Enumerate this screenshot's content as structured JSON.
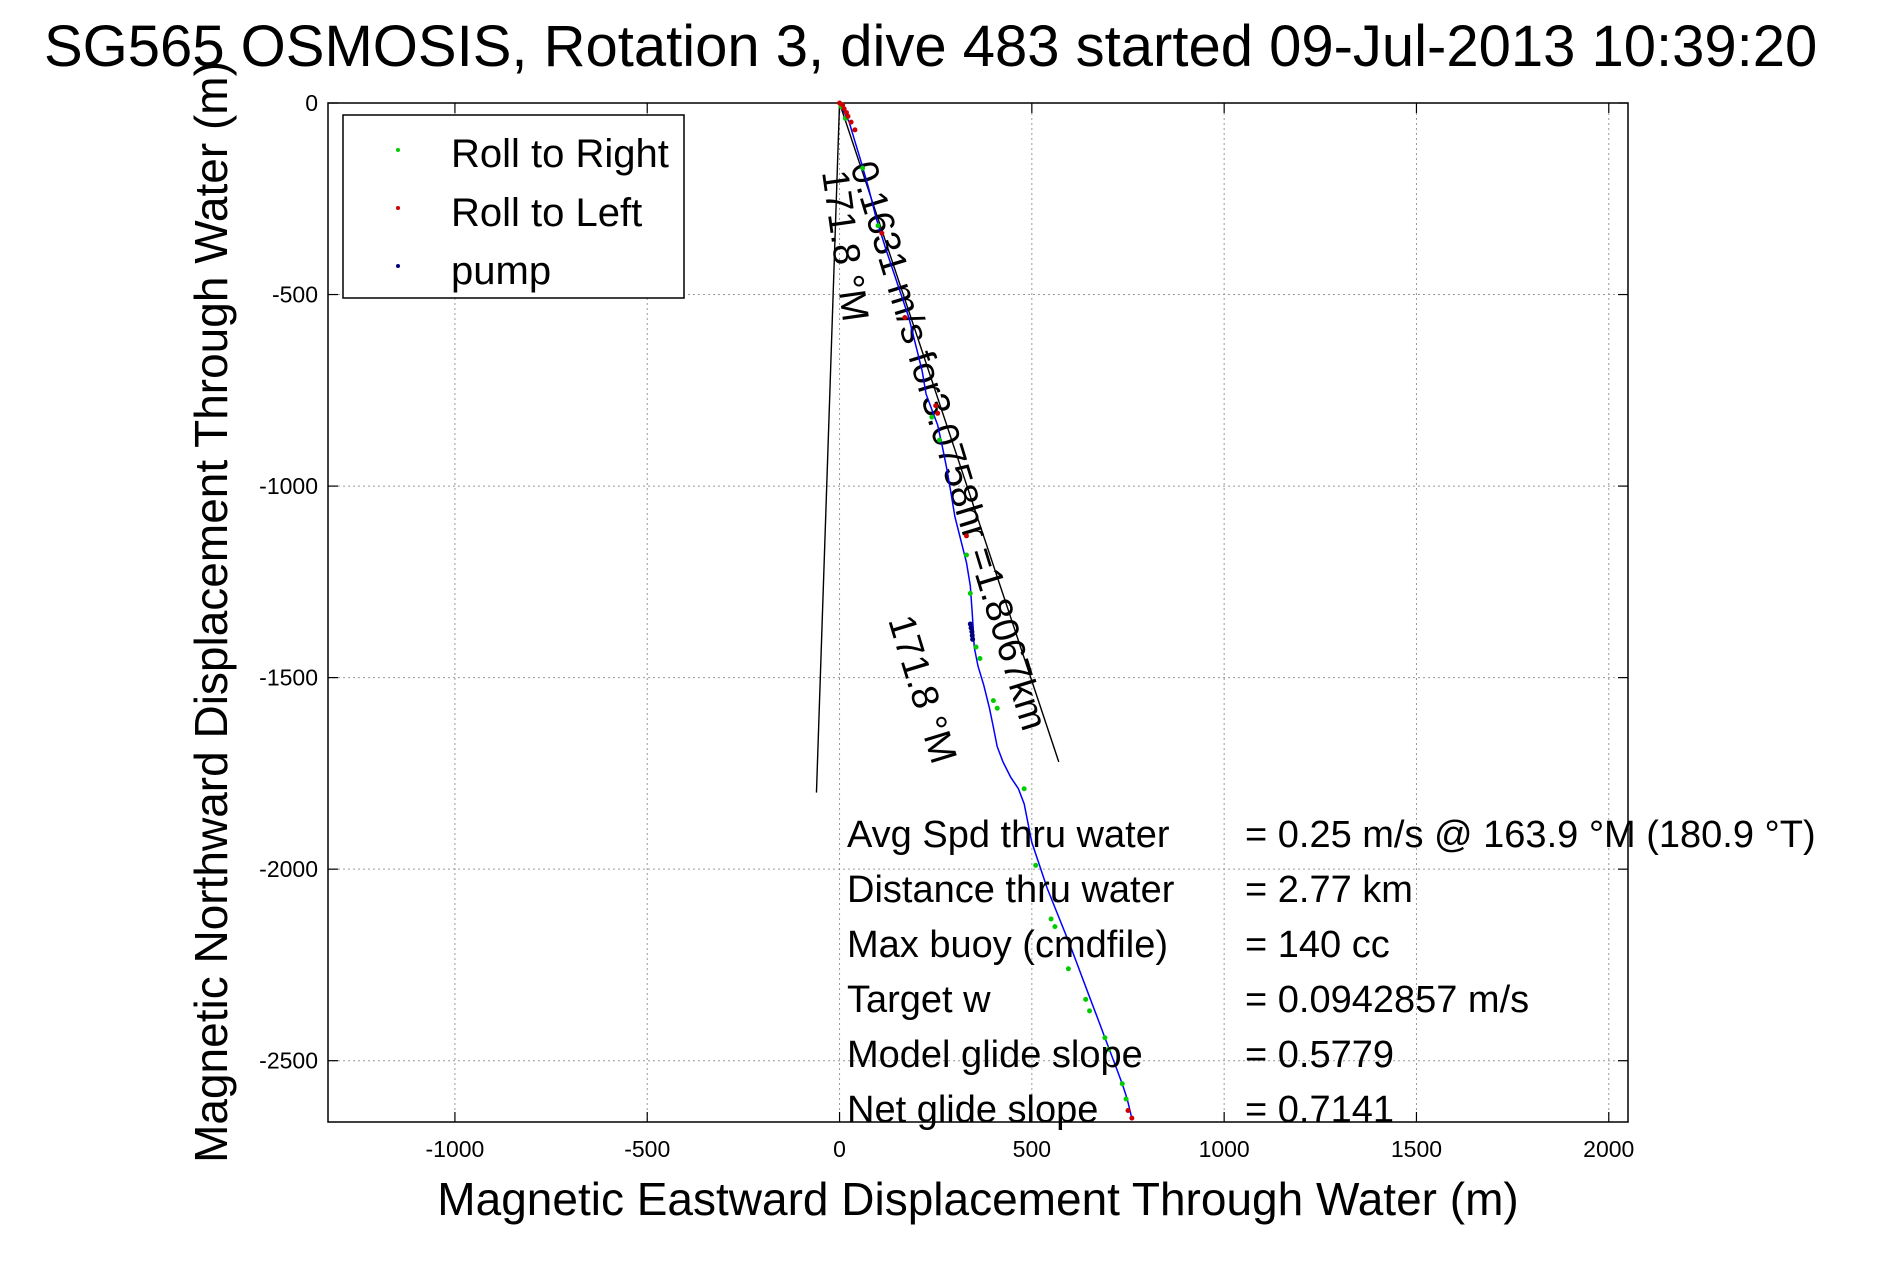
{
  "chart_data": {
    "type": "line",
    "title": "SG565 OSMOSIS, Rotation 3, dive 483 started 09-Jul-2013 10:39:20",
    "xlabel": "Magnetic Eastward Displacement Through Water (m)",
    "ylabel": "Magnetic Northward Displacement Through Water (m)",
    "xlim": [
      -1330,
      2050
    ],
    "ylim": [
      -2660,
      0
    ],
    "xticks": [
      -1000,
      -500,
      0,
      500,
      1000,
      1500,
      2000
    ],
    "xtick_labels": [
      "-1000",
      "-500",
      "0",
      "500",
      "1000",
      "1500",
      "2000"
    ],
    "yticks": [
      0,
      -500,
      -1000,
      -1500,
      -2000,
      -2500
    ],
    "ytick_labels": [
      "0",
      "-500",
      "-1000",
      "-1500",
      "-2000",
      "-2500"
    ],
    "grid": true,
    "legend_position": "top-left",
    "legend": [
      {
        "label": "Roll to Right",
        "color": "#00cc00"
      },
      {
        "label": "Roll to Left",
        "color": "#cc0000"
      },
      {
        "label": "pump",
        "color": "#000080"
      }
    ],
    "track": {
      "color": "#0000ff",
      "x": [
        0,
        10,
        25,
        40,
        55,
        75,
        95,
        120,
        150,
        180,
        200,
        215,
        225,
        240,
        255,
        268,
        280,
        290,
        300,
        315,
        330,
        340,
        345,
        348,
        350,
        360,
        375,
        390,
        400,
        410,
        425,
        445,
        465,
        480,
        490,
        500,
        520,
        540,
        560,
        580,
        600,
        615,
        630,
        645,
        660,
        675,
        690,
        705,
        720,
        735,
        748,
        760
      ],
      "y": [
        0,
        -20,
        -50,
        -100,
        -150,
        -220,
        -300,
        -380,
        -470,
        -560,
        -640,
        -700,
        -760,
        -800,
        -840,
        -900,
        -960,
        -1020,
        -1080,
        -1140,
        -1200,
        -1260,
        -1330,
        -1380,
        -1420,
        -1470,
        -1520,
        -1580,
        -1630,
        -1680,
        -1720,
        -1760,
        -1790,
        -1830,
        -1880,
        -1930,
        -1990,
        -2050,
        -2100,
        -2150,
        -2200,
        -2240,
        -2280,
        -2320,
        -2360,
        -2400,
        -2440,
        -2480,
        -2520,
        -2560,
        -2600,
        -2650
      ]
    },
    "roll_right_points": {
      "color": "#00cc00",
      "x": [
        5,
        15,
        60,
        100,
        240,
        260,
        330,
        340,
        355,
        365,
        400,
        410,
        480,
        510,
        550,
        560,
        595,
        640,
        650,
        690,
        700,
        735,
        745
      ],
      "y": [
        -10,
        -40,
        -170,
        -320,
        -820,
        -880,
        -1180,
        -1280,
        -1420,
        -1450,
        -1560,
        -1580,
        -1790,
        -1990,
        -2130,
        -2150,
        -2260,
        -2340,
        -2370,
        -2440,
        -2470,
        -2560,
        -2600
      ]
    },
    "roll_left_points": {
      "color": "#cc0000",
      "x": [
        0,
        8,
        12,
        18,
        22,
        30,
        40,
        110,
        170,
        250,
        255,
        330,
        750,
        760
      ],
      "y": [
        0,
        -5,
        -15,
        -25,
        -35,
        -50,
        -70,
        -340,
        -560,
        -790,
        -810,
        -1130,
        -2630,
        -2650
      ]
    },
    "pump_points": {
      "color": "#000080",
      "x": [
        340,
        342,
        344,
        345,
        346
      ],
      "y": [
        -1360,
        -1370,
        -1380,
        -1390,
        -1400
      ]
    },
    "reference_lines": [
      {
        "name": "line-171-left",
        "color": "#000000",
        "x": [
          0,
          -60
        ],
        "y": [
          0,
          -1800
        ]
      },
      {
        "name": "line-171-right",
        "color": "#000000",
        "x": [
          0,
          570
        ],
        "y": [
          0,
          -1720
        ]
      }
    ],
    "annotations": [
      {
        "text": "171.8 °M",
        "rotation": 82
      },
      {
        "text": "0.1631 m/s for3.0758hr =1.8067km",
        "rotation": 73
      },
      {
        "text": "171.8 °M",
        "rotation": 73
      }
    ],
    "stats": [
      {
        "label": "Avg Spd thru water",
        "value": "=  0.25 m/s @ 163.9 °M (180.9 °T)"
      },
      {
        "label": "Distance thru water",
        "value": "=  2.77 km"
      },
      {
        "label": "Max buoy (cmdfile)",
        "value": "= 140 cc"
      },
      {
        "label": "Target w",
        "value": "= 0.0942857 m/s"
      },
      {
        "label": "Model glide slope",
        "value": "= 0.5779"
      },
      {
        "label": "Net glide slope",
        "value": "= 0.7141"
      }
    ]
  }
}
